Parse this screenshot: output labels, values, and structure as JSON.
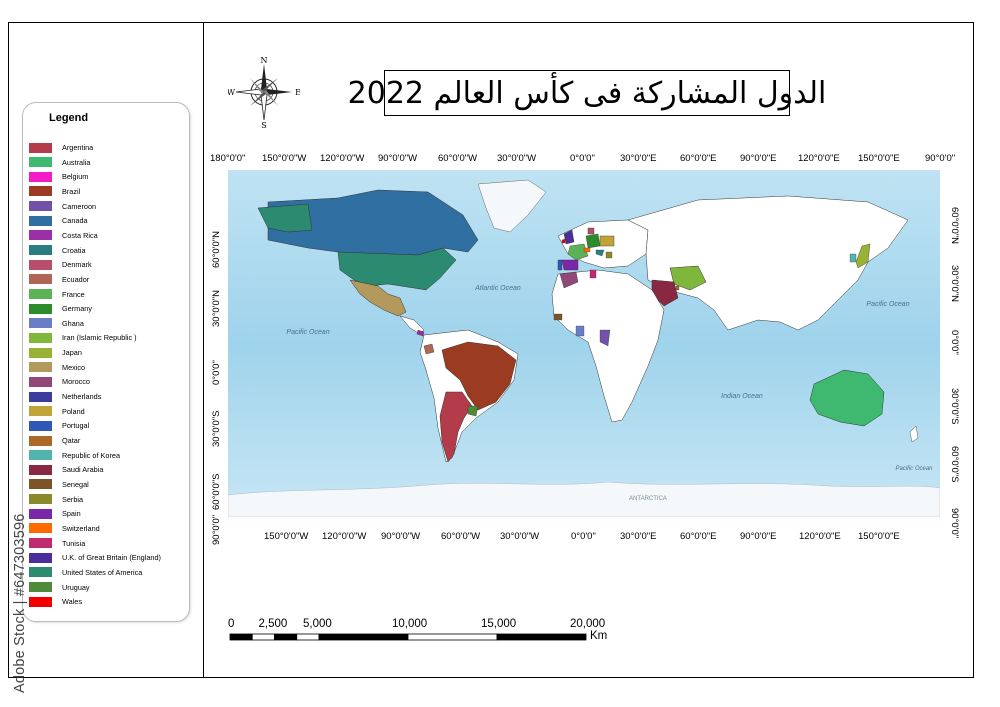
{
  "title": "الدول المشاركة فى كأس العالم 2022",
  "compass": {
    "north": "N",
    "south": "S",
    "east": "E",
    "west": "W"
  },
  "legend": {
    "title": "Legend",
    "items": [
      {
        "label": "Argentina",
        "color": "#b43b4a"
      },
      {
        "label": "Australia",
        "color": "#3fb96f"
      },
      {
        "label": "Belgium",
        "color": "#f21bc5"
      },
      {
        "label": "Brazil",
        "color": "#9b3b22"
      },
      {
        "label": "Cameroon",
        "color": "#7252a8"
      },
      {
        "label": "Canada",
        "color": "#2f6fa2"
      },
      {
        "label": "Costa Rica",
        "color": "#9a2fa8"
      },
      {
        "label": "Croatia",
        "color": "#2a7e83"
      },
      {
        "label": "Denmark",
        "color": "#b84e6c"
      },
      {
        "label": "Ecuador",
        "color": "#b06657"
      },
      {
        "label": "France",
        "color": "#5ab457"
      },
      {
        "label": "Germany",
        "color": "#2c8c2c"
      },
      {
        "label": "Ghana",
        "color": "#6a7ec6"
      },
      {
        "label": "Iran (Islamic Republic )",
        "color": "#7fb63c"
      },
      {
        "label": "Japan",
        "color": "#97b234"
      },
      {
        "label": "Mexico",
        "color": "#b39a5c"
      },
      {
        "label": "Morocco",
        "color": "#924779"
      },
      {
        "label": "Netherlands",
        "color": "#3c3c9e"
      },
      {
        "label": "Poland",
        "color": "#c2a33a"
      },
      {
        "label": "Portugal",
        "color": "#2f58b8"
      },
      {
        "label": "Qatar",
        "color": "#ab6a28"
      },
      {
        "label": "Republic of Korea",
        "color": "#51b4ae"
      },
      {
        "label": "Saudi Arabia",
        "color": "#8a2742"
      },
      {
        "label": "Senegal",
        "color": "#7d5428"
      },
      {
        "label": "Serbia",
        "color": "#8a8a2a"
      },
      {
        "label": "Spain",
        "color": "#7c27a8"
      },
      {
        "label": "Switzerland",
        "color": "#ff6a00"
      },
      {
        "label": "Tunisia",
        "color": "#c02b6e"
      },
      {
        "label": "U.K. of Great Britain (England)",
        "color": "#4a2f9a"
      },
      {
        "label": "United States of America",
        "color": "#2b8a70"
      },
      {
        "label": "Uruguay",
        "color": "#4e8a3a"
      },
      {
        "label": "Wales",
        "color": "#f00000"
      }
    ]
  },
  "coords": {
    "top": [
      "180°0'0\"",
      "150°0'0\"W",
      "120°0'0\"W",
      "90°0'0\"W",
      "60°0'0\"W",
      "30°0'0\"W",
      "0°0'0\"",
      "30°0'0\"E",
      "60°0'0\"E",
      "90°0'0\"E",
      "120°0'0\"E",
      "150°0'0\"E",
      "90°0'0\""
    ],
    "bottom": [
      "150°0'0\"W",
      "120°0'0\"W",
      "90°0'0\"W",
      "60°0'0\"W",
      "30°0'0\"W",
      "0°0'0\"",
      "30°0'0\"E",
      "60°0'0\"E",
      "90°0'0\"E",
      "120°0'0\"E",
      "150°0'0\"E"
    ],
    "left": [
      "60°0'0\"N",
      "30°0'0\"N",
      "0°0'0\"",
      "30°0'0\"S",
      "60°0'0\"S",
      "90°0'0\""
    ],
    "right": [
      "60°0'0\"N",
      "30°0'0\"N",
      "0°0'0\"",
      "30°0'0\"S",
      "60°0'0\"S",
      "90°0'0\""
    ]
  },
  "map": {
    "ocean_color": "#a8d8ee",
    "land_color": "#ffffff",
    "ocean_labels": [
      "Atlantic Ocean",
      "Pacific Ocean",
      "Pacific Ocean",
      "Indian Ocean",
      "Pacific Ocean",
      "ANTARCTICA"
    ]
  },
  "scale_bar": {
    "labels": [
      "0",
      "2,500",
      "5,000",
      "10,000",
      "15,000",
      "20,000"
    ],
    "unit": "Km",
    "values": [
      0,
      2500,
      5000,
      10000,
      15000,
      20000
    ]
  },
  "watermark": "Adobe Stock | #647303596"
}
